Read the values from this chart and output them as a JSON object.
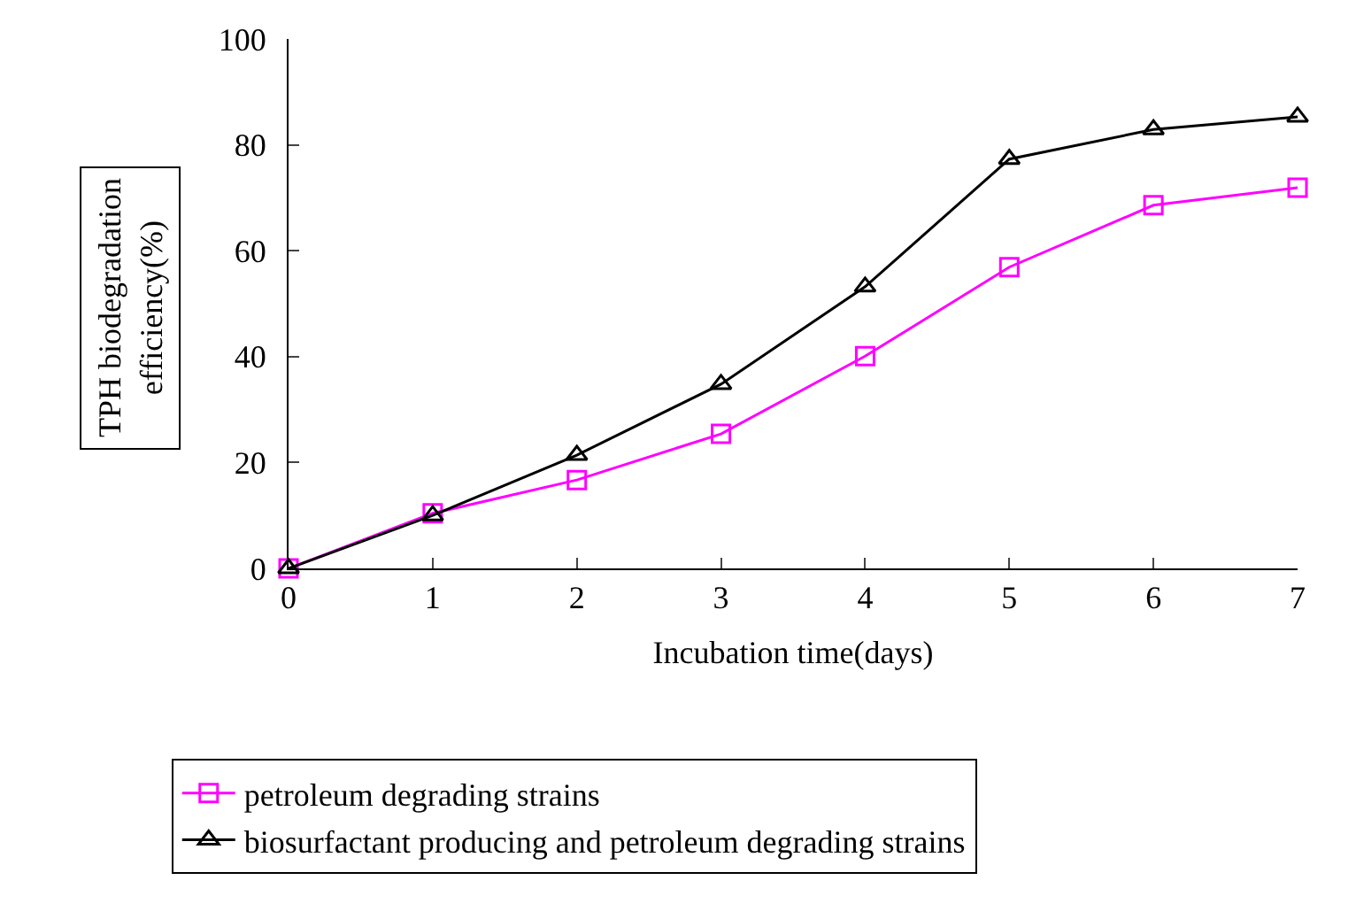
{
  "chart_data": {
    "type": "line",
    "xlabel": "Incubation time(days)",
    "ylabel": "TPH biodegradation efficiency(%)",
    "x": [
      0,
      1,
      2,
      3,
      4,
      5,
      6,
      7
    ],
    "xlim": [
      0,
      7
    ],
    "xticks": [
      0,
      1,
      2,
      3,
      4,
      5,
      6,
      7
    ],
    "ylim": [
      0,
      100
    ],
    "yticks": [
      0,
      20,
      40,
      60,
      80,
      100
    ],
    "legend": "bottom",
    "line_style": "solid",
    "series": [
      {
        "name": "petroleum degrading strains",
        "color": "#ff00ff",
        "marker": "square",
        "values": [
          0,
          10.4,
          16.7,
          25.4,
          40.1,
          56.9,
          68.6,
          71.9
        ]
      },
      {
        "name": "biosurfactant producing and petroleum degrading strains",
        "color": "#000000",
        "marker": "triangle",
        "values": [
          0,
          10,
          21.4,
          34.8,
          53.2,
          77.3,
          82.9,
          85.3
        ]
      }
    ]
  }
}
